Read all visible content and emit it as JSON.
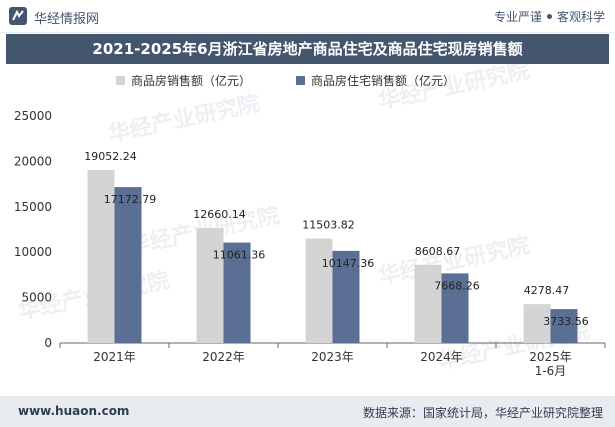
{
  "header": {
    "brand": "华经情报网",
    "tag1": "专业严谨",
    "tag2": "客观科学"
  },
  "chart_title": "2021-2025年6月浙江省房地产商品住宅及商品住宅现房销售额",
  "footer": {
    "url": "www.huaon.com",
    "source": "数据来源：国家统计局，华经产业研究院整理"
  },
  "watermark": "华经产业研究院",
  "colors": {
    "brand": "#44556e",
    "series1": "#d4d4d4",
    "series2": "#5b6f95"
  },
  "chart_data": {
    "type": "bar",
    "categories": [
      "2021年",
      "2022年",
      "2023年",
      "2024年",
      "2025年\n1-6月"
    ],
    "series": [
      {
        "name": "商品房销售额（亿元）",
        "values": [
          19052.24,
          12660.14,
          11503.82,
          8608.67,
          4278.47
        ]
      },
      {
        "name": "商品房住宅销售额（亿元）",
        "values": [
          17172.79,
          11061.36,
          10147.36,
          7668.26,
          3733.56
        ]
      }
    ],
    "ylim": [
      0,
      25000
    ],
    "yticks": [
      0,
      5000,
      10000,
      15000,
      20000,
      25000
    ],
    "legend_position": "top-center",
    "grid": false
  }
}
